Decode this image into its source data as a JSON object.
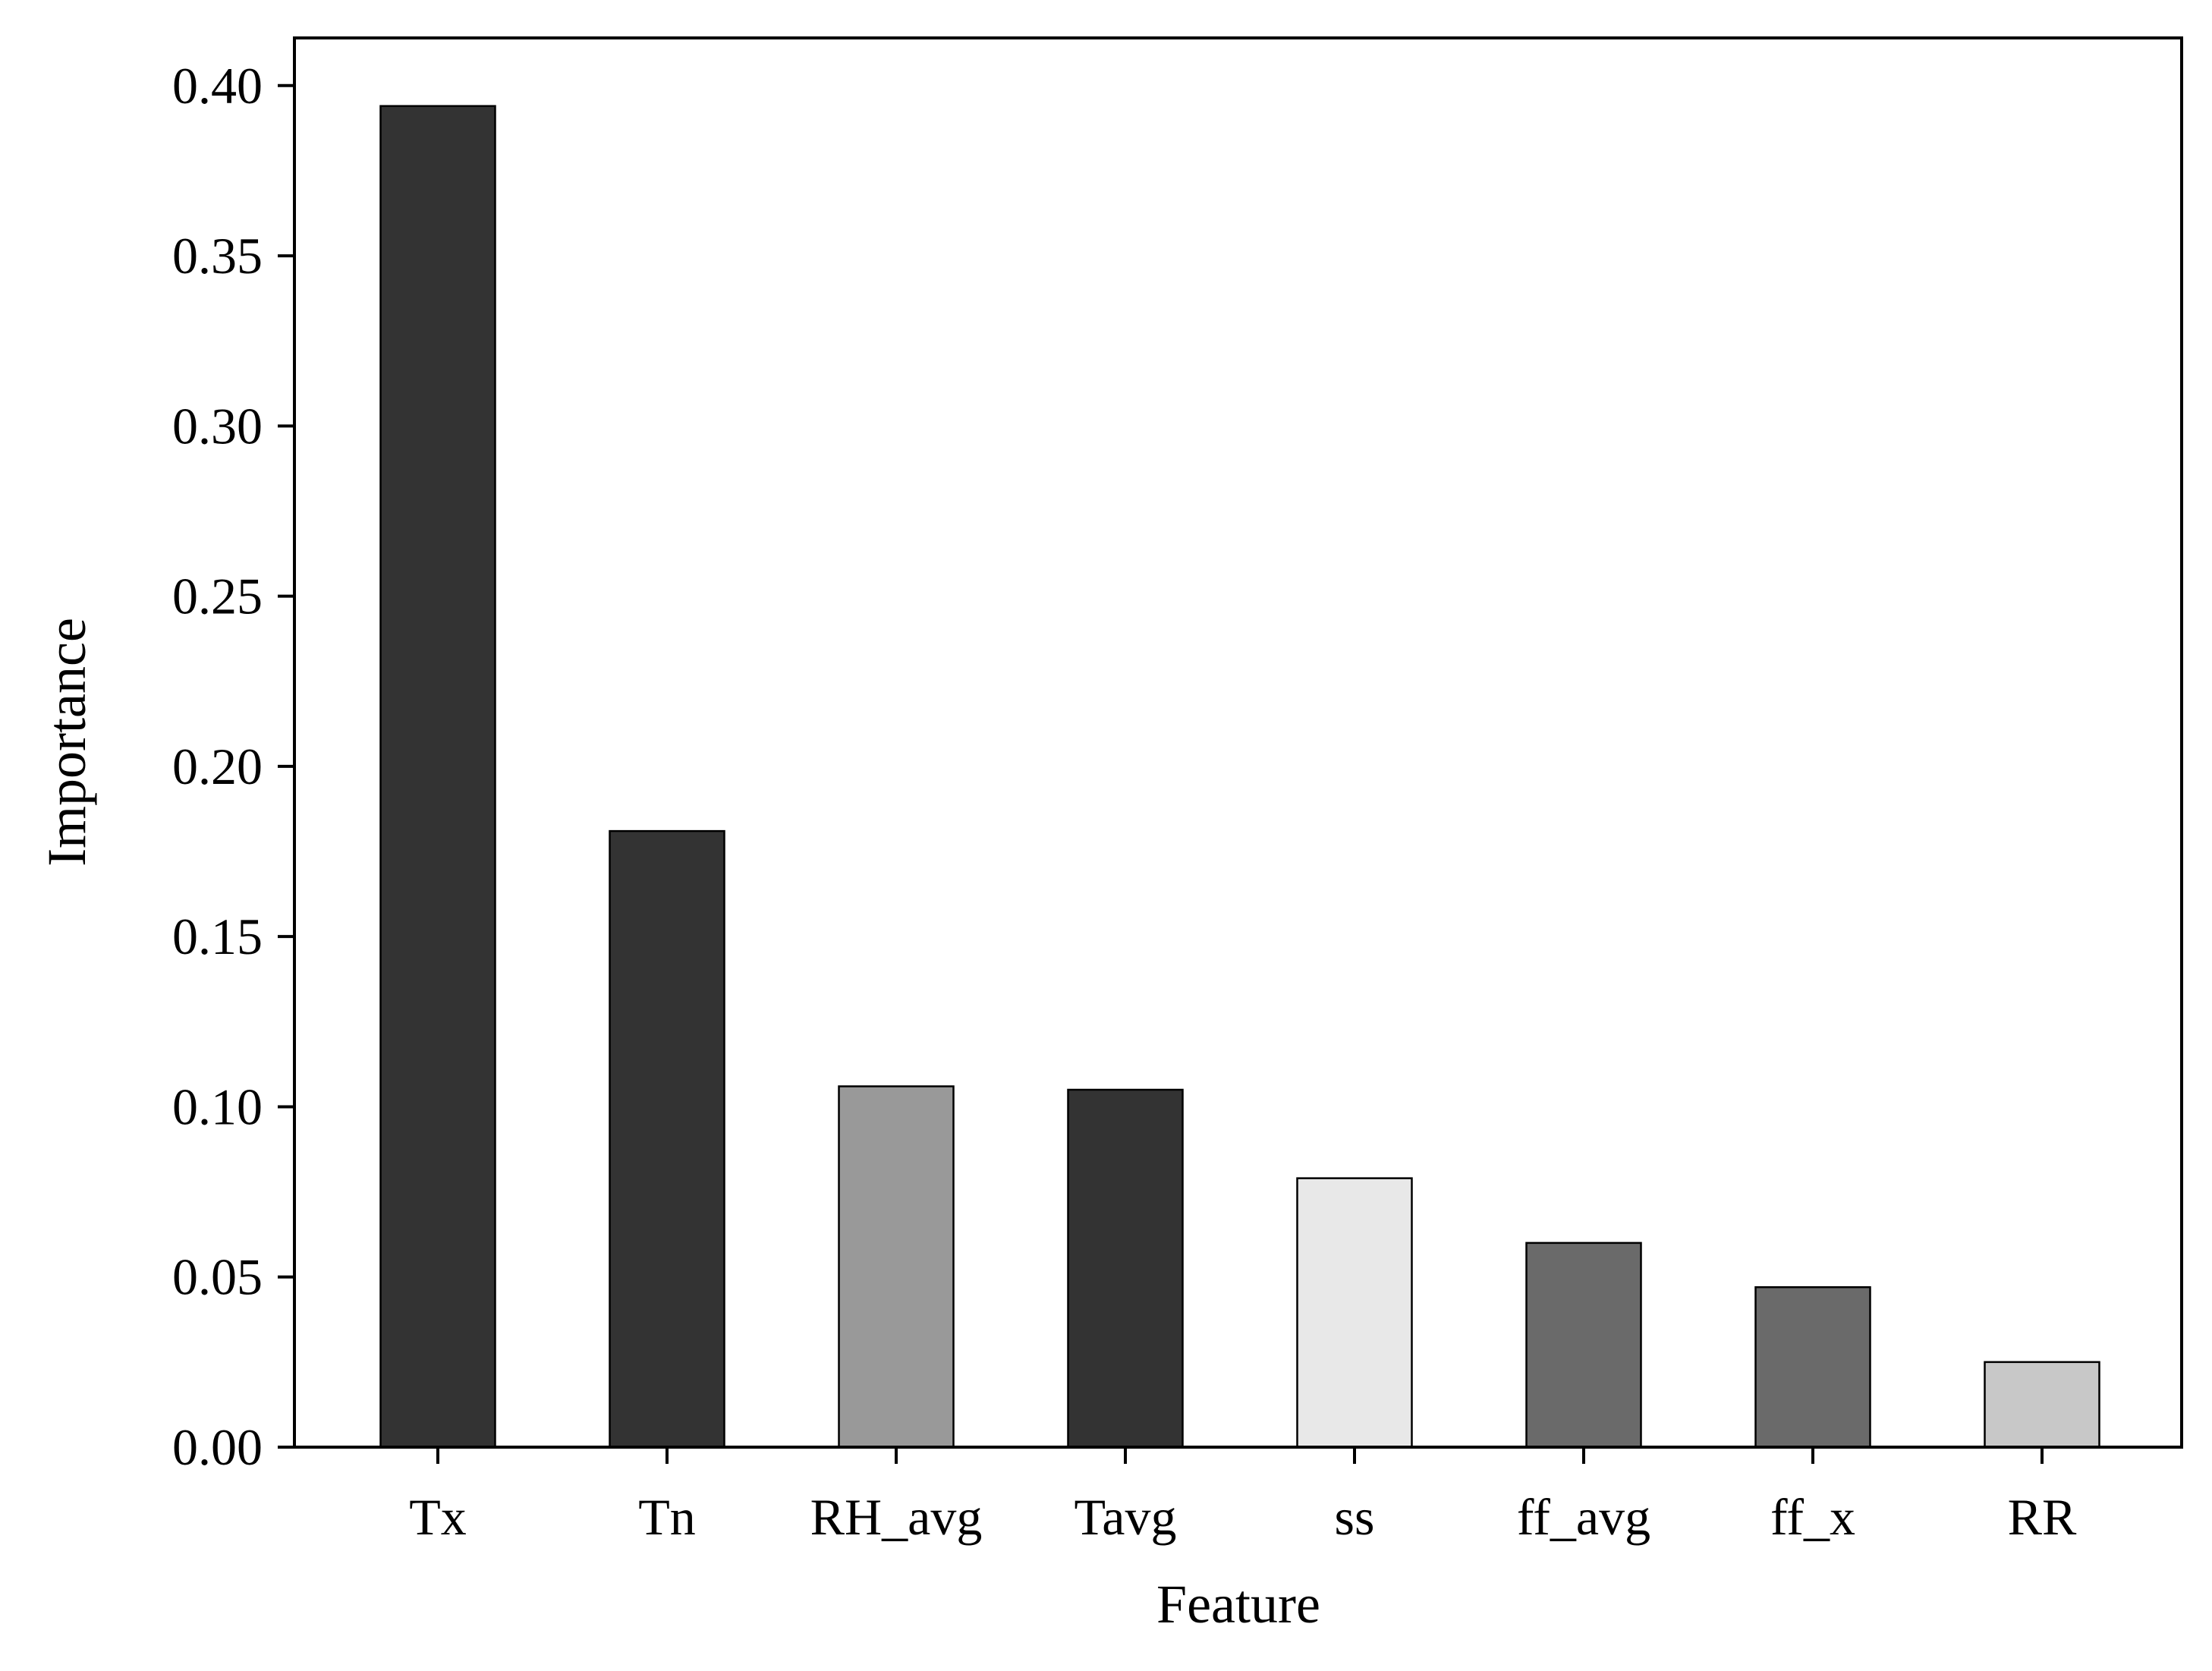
{
  "chart_data": {
    "type": "bar",
    "title": "",
    "xlabel": "Feature",
    "ylabel": "Importance",
    "categories": [
      "Tx",
      "Tn",
      "RH_avg",
      "Tavg",
      "ss",
      "ff_avg",
      "ff_x",
      "RR"
    ],
    "values": [
      0.394,
      0.181,
      0.106,
      0.105,
      0.079,
      0.06,
      0.047,
      0.025
    ],
    "bar_colors": [
      "#333333",
      "#333333",
      "#999999",
      "#333333",
      "#e8e8e8",
      "#6a6a6a",
      "#6a6a6a",
      "#c8c8c8"
    ],
    "bar_edge_color": "#000000",
    "ylim": [
      0,
      0.414
    ],
    "yticks": [
      "0.00",
      "0.05",
      "0.10",
      "0.15",
      "0.20",
      "0.25",
      "0.30",
      "0.35",
      "0.40"
    ],
    "grid": false,
    "legend": "none"
  }
}
